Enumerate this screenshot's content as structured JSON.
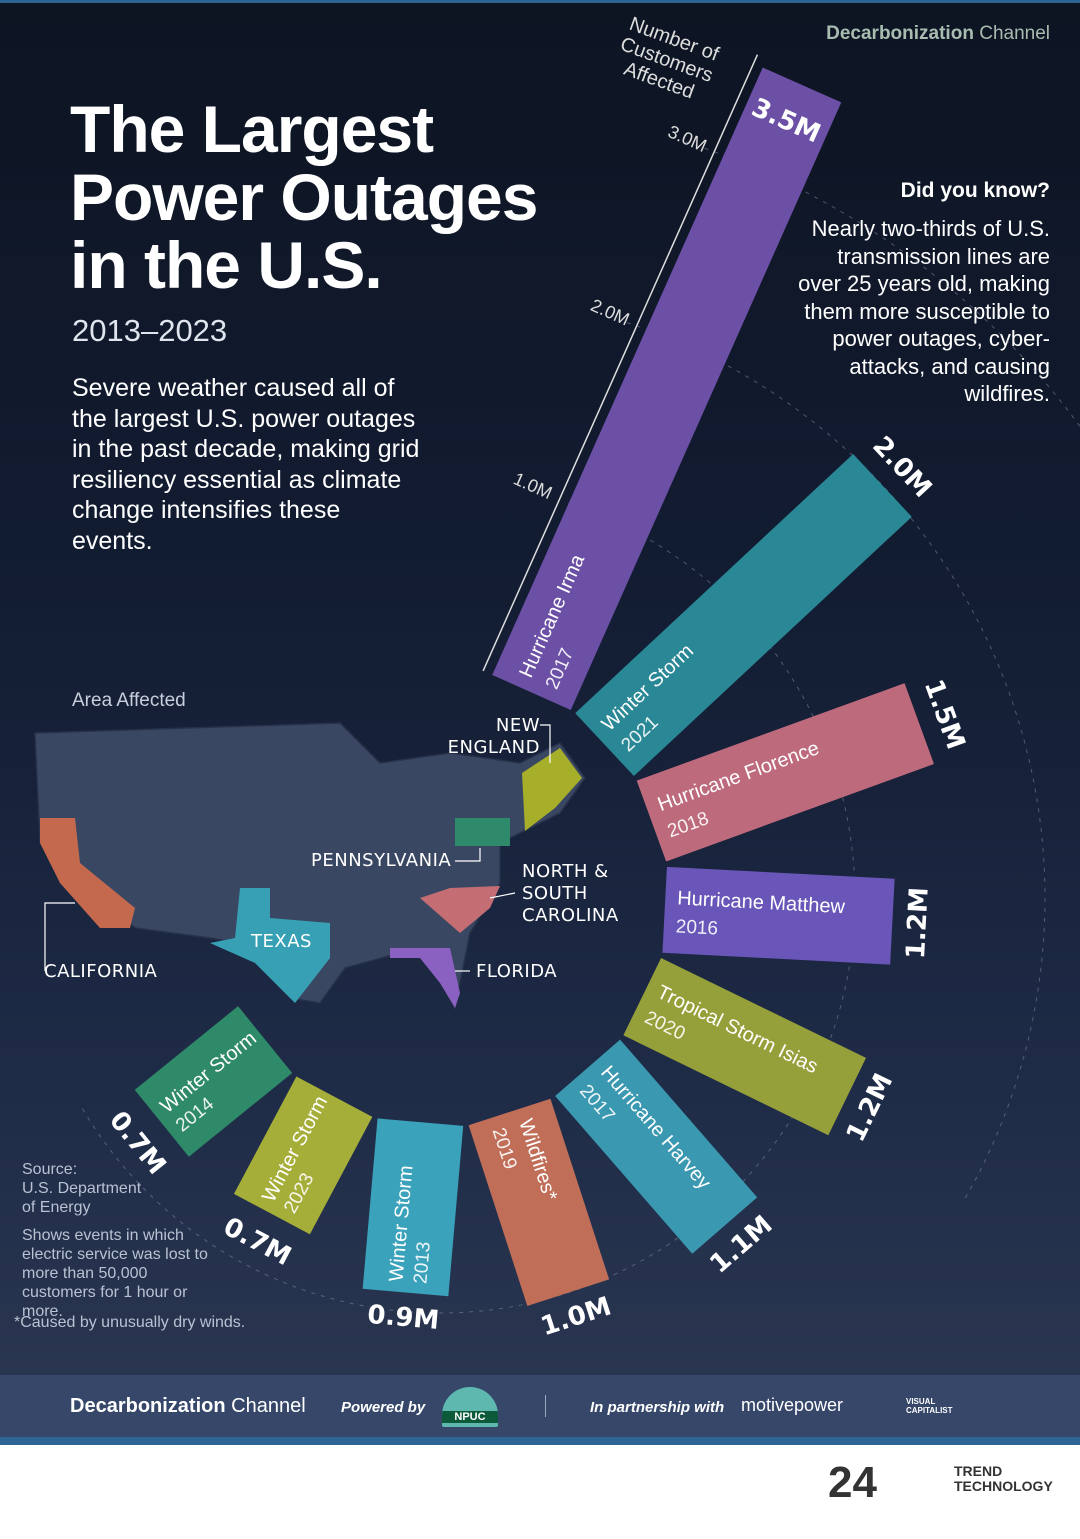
{
  "header": {
    "brand_bold": "Decarbonization",
    "brand_light": "Channel"
  },
  "title": {
    "line1": "The Largest",
    "line2": "Power Outages",
    "line3": "in the U.S.",
    "years": "2013–2023"
  },
  "intro": "Severe weather caused all of the largest U.S. power outages in the past decade, making grid resiliency essential as climate change intensifies these events.",
  "did_you_know": {
    "heading": "Did you know?",
    "text": "Nearly two-thirds of U.S. transmission lines are over 25 years old, making them more susceptible to power outages, cyber-attacks, and causing wildfires."
  },
  "map": {
    "heading": "Area Affected",
    "labels": {
      "new_england": "NEW ENGLAND",
      "pennsylvania": "PENNSYLVANIA",
      "carolina": "NORTH & SOUTH CAROLINA",
      "texas": "TEXAS",
      "california": "CALIFORNIA",
      "florida": "FLORIDA"
    }
  },
  "source": {
    "label": "Source:",
    "name": "U.S. Department of Energy",
    "note": "Shows events in which electric service was lost to more than 50,000 customers for 1 hour or more.",
    "footnote": "*Caused by unusually dry winds."
  },
  "chart_data": {
    "type": "bar",
    "layout": "radial",
    "axis_label": "Number of Customers Affected",
    "axis_ticks": [
      "1.0M",
      "2.0M",
      "3.0M"
    ],
    "tick_values": [
      1.0,
      2.0,
      3.0
    ],
    "unit": "million customers",
    "bars": [
      {
        "event": "Hurricane Irma",
        "year": "2017",
        "value": 3.5,
        "label": "3.5M",
        "color": "#6b50a6",
        "area": "Florida"
      },
      {
        "event": "Winter Storm",
        "year": "2021",
        "value": 2.0,
        "label": "2.0M",
        "color": "#2a8796",
        "area": "Texas"
      },
      {
        "event": "Hurricane Florence",
        "year": "2018",
        "value": 1.5,
        "label": "1.5M",
        "color": "#bd6a7c",
        "area": "North & South Carolina"
      },
      {
        "event": "Hurricane Matthew",
        "year": "2016",
        "value": 1.2,
        "label": "1.2M",
        "color": "#6a55b8",
        "area": "Florida"
      },
      {
        "event": "Tropical Storm Isias",
        "year": "2020",
        "value": 1.2,
        "label": "1.2M",
        "color": "#96a03a",
        "area": "New England"
      },
      {
        "event": "Hurricane Harvey",
        "year": "2017",
        "value": 1.1,
        "label": "1.1M",
        "color": "#3a98b0",
        "area": "Texas"
      },
      {
        "event": "Wildfires*",
        "year": "2019",
        "value": 1.0,
        "label": "1.0M",
        "color": "#c06e58",
        "area": "California"
      },
      {
        "event": "Winter Storm",
        "year": "2013",
        "value": 0.9,
        "label": "0.9M",
        "color": "#3aa2ba",
        "area": "Texas"
      },
      {
        "event": "Winter Storm",
        "year": "2023",
        "value": 0.7,
        "label": "0.7M",
        "color": "#a6ae3a",
        "area": "New England"
      },
      {
        "event": "Winter Storm",
        "year": "2014",
        "value": 0.7,
        "label": "0.7M",
        "color": "#2e8a68",
        "area": "Pennsylvania"
      }
    ]
  },
  "footer": {
    "brand_bold": "Decarbonization",
    "brand_light": "Channel",
    "powered_by": "Powered by",
    "npuc": "NPUC",
    "partnership": "In partnership with",
    "motivepower": "motivepower",
    "visual_capitalist": "VISUAL CAPITALIST"
  },
  "watermark": {
    "number": "24",
    "line1": "TREND",
    "line2": "TECHNOLOGY"
  }
}
